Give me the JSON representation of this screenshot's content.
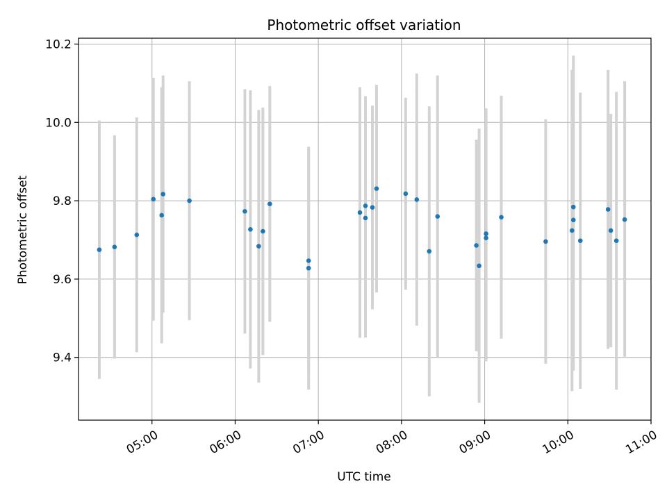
{
  "chart_data": {
    "type": "scatter",
    "title": "Photometric offset variation",
    "xlabel": "UTC time",
    "ylabel": "Photometric offset",
    "x_scale": "time",
    "xlim": [
      "04:07",
      "11:00"
    ],
    "ylim": [
      9.24,
      10.215
    ],
    "xticks": [
      "05:00",
      "06:00",
      "07:00",
      "08:00",
      "09:00",
      "10:00",
      "11:00"
    ],
    "yticks": [
      9.4,
      9.6,
      9.8,
      10.0,
      10.2
    ],
    "ytick_labels": [
      "9.4",
      "9.6",
      "9.8",
      "10.0",
      "10.2"
    ],
    "grid": true,
    "colors": {
      "marker": "#1f77b4",
      "errorbar": "#d3d3d3",
      "grid": "#b0b0b0"
    },
    "points": [
      {
        "x": "04:22",
        "y": 9.675,
        "err": 0.33
      },
      {
        "x": "04:33",
        "y": 9.682,
        "err": 0.285
      },
      {
        "x": "04:49",
        "y": 9.713,
        "err": 0.3
      },
      {
        "x": "05:01",
        "y": 9.804,
        "err": 0.31
      },
      {
        "x": "05:07",
        "y": 9.763,
        "err": 0.327
      },
      {
        "x": "05:08",
        "y": 9.817,
        "err": 0.303
      },
      {
        "x": "05:27",
        "y": 9.8,
        "err": 0.305
      },
      {
        "x": "06:07",
        "y": 9.773,
        "err": 0.312
      },
      {
        "x": "06:11",
        "y": 9.727,
        "err": 0.355
      },
      {
        "x": "06:17",
        "y": 9.684,
        "err": 0.348
      },
      {
        "x": "06:20",
        "y": 9.722,
        "err": 0.316
      },
      {
        "x": "06:25",
        "y": 9.792,
        "err": 0.301
      },
      {
        "x": "06:53",
        "y": 9.647,
        "err": 0.29
      },
      {
        "x": "06:53",
        "y": 9.628,
        "err": 0.31
      },
      {
        "x": "07:30",
        "y": 9.77,
        "err": 0.32
      },
      {
        "x": "07:34",
        "y": 9.787,
        "err": 0.28
      },
      {
        "x": "07:34",
        "y": 9.756,
        "err": 0.305
      },
      {
        "x": "07:39",
        "y": 9.783,
        "err": 0.26
      },
      {
        "x": "07:42",
        "y": 9.831,
        "err": 0.265
      },
      {
        "x": "08:03",
        "y": 9.818,
        "err": 0.245
      },
      {
        "x": "08:11",
        "y": 9.803,
        "err": 0.322
      },
      {
        "x": "08:20",
        "y": 9.671,
        "err": 0.37
      },
      {
        "x": "08:26",
        "y": 9.76,
        "err": 0.36
      },
      {
        "x": "08:54",
        "y": 9.686,
        "err": 0.27
      },
      {
        "x": "08:56",
        "y": 9.634,
        "err": 0.35
      },
      {
        "x": "09:01",
        "y": 9.705,
        "err": 0.315
      },
      {
        "x": "09:01",
        "y": 9.716,
        "err": 0.32
      },
      {
        "x": "09:12",
        "y": 9.758,
        "err": 0.31
      },
      {
        "x": "09:44",
        "y": 9.696,
        "err": 0.312
      },
      {
        "x": "10:03",
        "y": 9.724,
        "err": 0.41
      },
      {
        "x": "10:04",
        "y": 9.751,
        "err": 0.385
      },
      {
        "x": "10:04",
        "y": 9.784,
        "err": 0.387
      },
      {
        "x": "10:09",
        "y": 9.698,
        "err": 0.378
      },
      {
        "x": "10:29",
        "y": 9.778,
        "err": 0.356
      },
      {
        "x": "10:31",
        "y": 9.724,
        "err": 0.298
      },
      {
        "x": "10:35",
        "y": 9.698,
        "err": 0.38
      },
      {
        "x": "10:41",
        "y": 9.752,
        "err": 0.353
      }
    ]
  }
}
